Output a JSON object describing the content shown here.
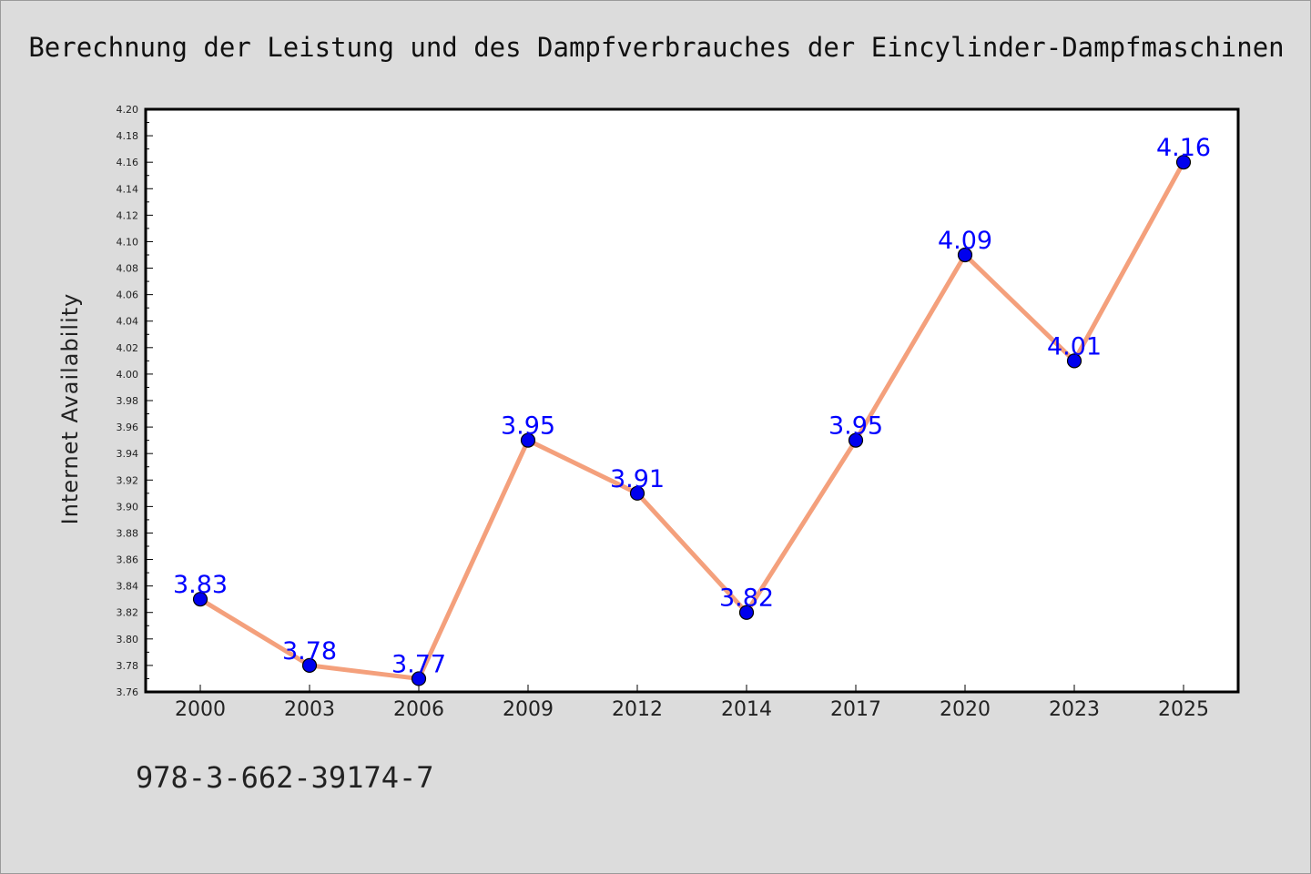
{
  "title": "Berechnung der Leistung und des Dampfverbrauches der Eincylinder-Dampfmaschinen",
  "footnote": "978-3-662-39174-7",
  "colors": {
    "line": "#f4a07c",
    "marker": "#0000ee",
    "label": "#0000ff"
  },
  "chart_data": {
    "type": "line",
    "title": "Berechnung der Leistung und des Dampfverbrauches der Eincylinder-Dampfmaschinen",
    "xlabel": "",
    "ylabel": "Internet Availability",
    "categories": [
      "2000",
      "2003",
      "2006",
      "2009",
      "2012",
      "2014",
      "2017",
      "2020",
      "2023",
      "2025"
    ],
    "series": [
      {
        "values": [
          3.83,
          3.78,
          3.77,
          3.95,
          3.91,
          3.82,
          3.95,
          4.09,
          4.01,
          4.16
        ]
      }
    ],
    "ylim": [
      3.76,
      4.2
    ],
    "ytick_step": 0.02,
    "grid": false,
    "legend": "none"
  }
}
